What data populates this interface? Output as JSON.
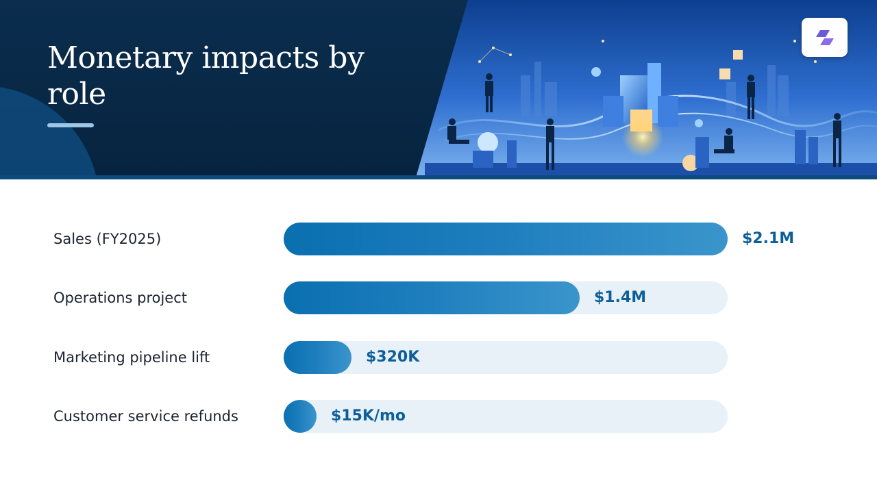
{
  "header": {
    "title": "Monetary impacts by role"
  },
  "colors": {
    "header_bg": "#0b2d4e",
    "bar_fill": "#0a6fb0",
    "bar_track": "#e8f1f8",
    "value_text": "#0d5f9a",
    "label_text": "#1c2430"
  },
  "icons": {
    "logo": "slanted-bars-logo-icon",
    "illustration": "business-people-city-illustration"
  },
  "chart_data": {
    "type": "bar",
    "orientation": "horizontal",
    "title": "",
    "categories": [
      "Sales (FY2025)",
      "Operations project",
      "Marketing pipeline lift",
      "Customer service refunds"
    ],
    "value_labels": [
      "$2.1M",
      "$1.4M",
      "$320K",
      "$15K/mo"
    ],
    "values": [
      2100000,
      1400000,
      320000,
      15000
    ],
    "xlim": [
      0,
      2100000
    ],
    "grid": false,
    "legend": "none"
  }
}
